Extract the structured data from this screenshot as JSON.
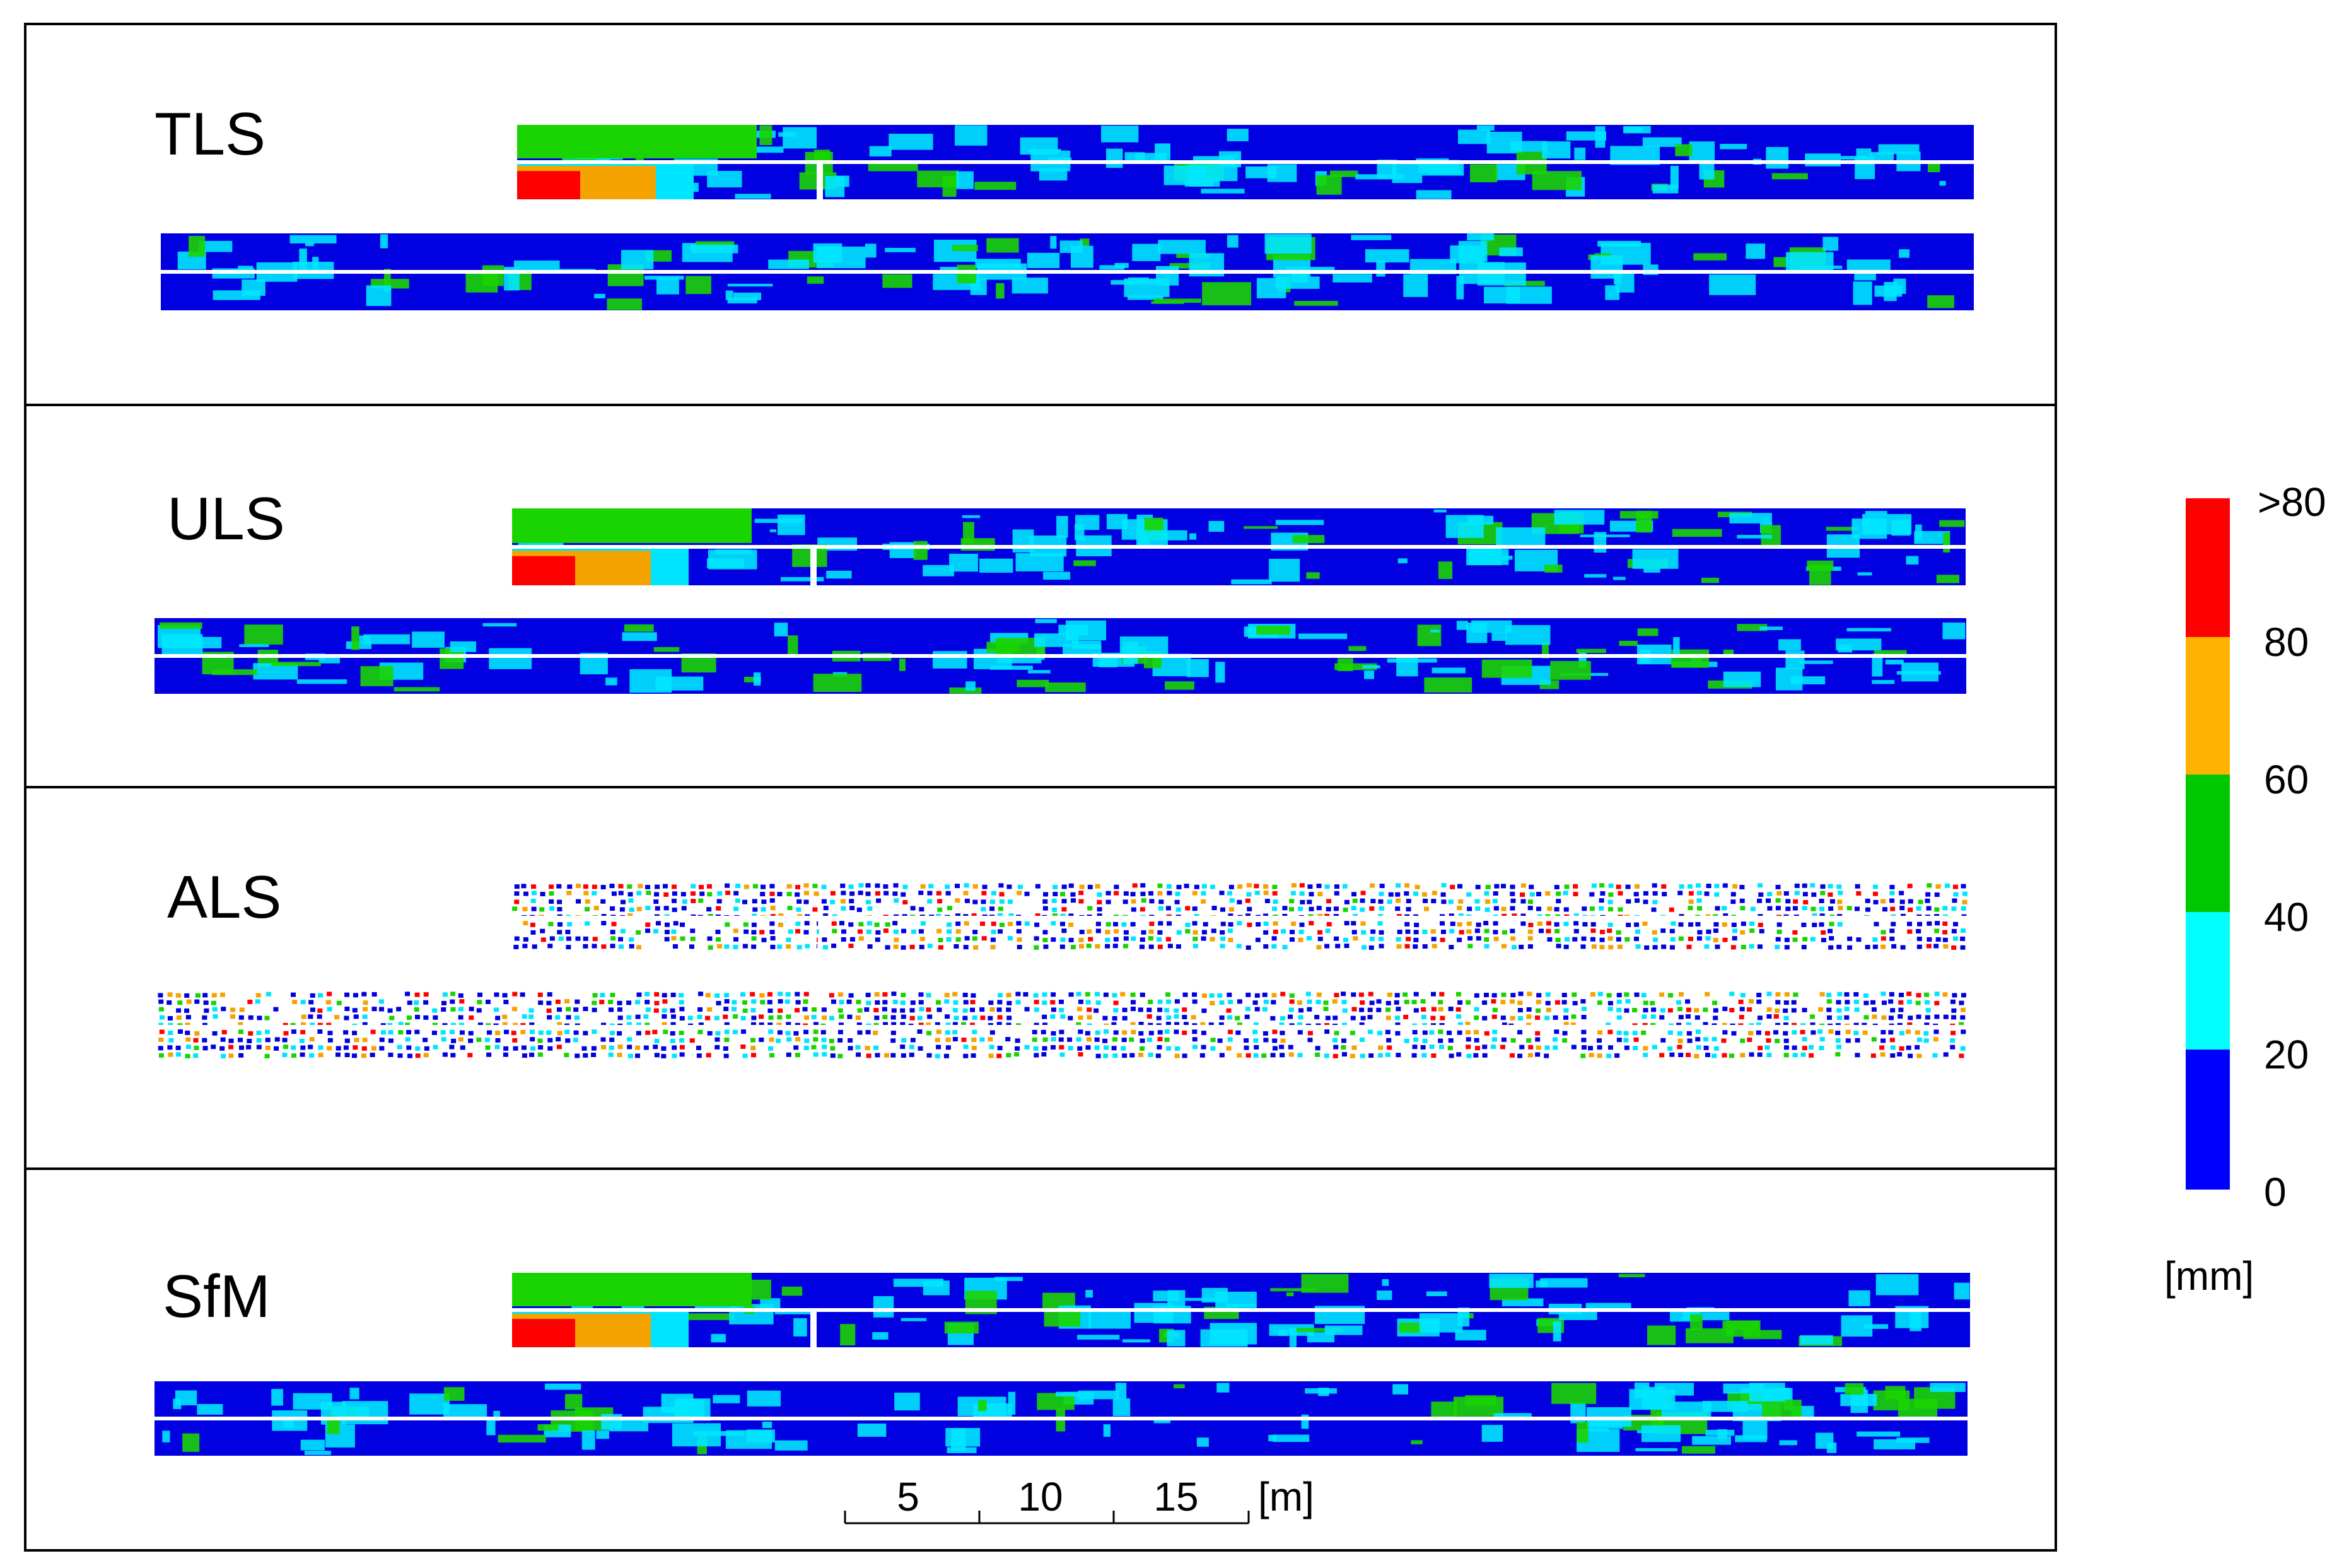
{
  "panels": [
    {
      "label": "TLS",
      "texture": "smooth",
      "bg_color": "#0000e0",
      "hot_level": "high"
    },
    {
      "label": "ULS",
      "texture": "smooth",
      "bg_color": "#0000e0",
      "hot_level": "high"
    },
    {
      "label": "ALS",
      "texture": "dots",
      "bg_color": "#0000e0",
      "hot_level": "medium"
    },
    {
      "label": "SfM",
      "texture": "smooth",
      "bg_color": "#0000e0",
      "hot_level": "high"
    }
  ],
  "scale_bar": {
    "ticks": [
      "5",
      "10",
      "15"
    ],
    "unit": "[m]"
  },
  "legend": {
    "tick_labels": [
      ">80",
      "80",
      "60",
      "40",
      "20",
      "0"
    ],
    "unit": "[mm]",
    "bands": [
      {
        "range": ">80",
        "color": "#ff0000"
      },
      {
        "range": "60–80",
        "color": "#ffb300"
      },
      {
        "range": "40–60",
        "color": "#00c800"
      },
      {
        "range": "20–40",
        "color": "#00ffff"
      },
      {
        "range": "0–20",
        "color": "#0000ff"
      }
    ]
  },
  "colors": {
    "strip_base": "#0000e0",
    "cyan": "#00e5ff",
    "green": "#19d400",
    "orange": "#f5a300",
    "red": "#ff0000",
    "frame": "#000000"
  }
}
